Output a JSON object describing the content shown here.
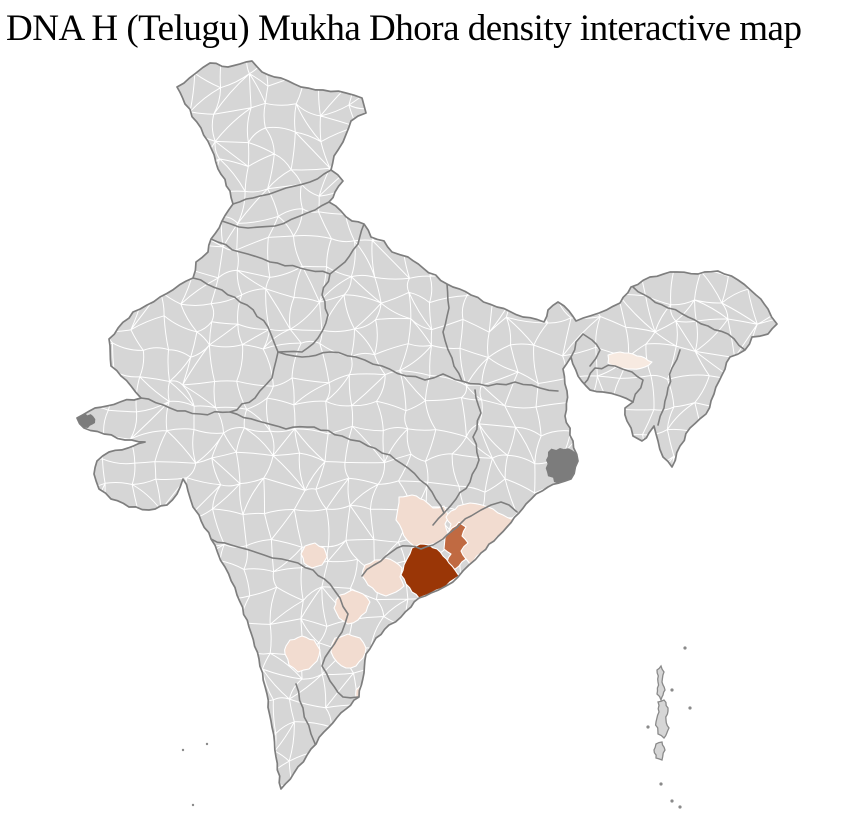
{
  "title": "DNA H (Telugu) Mukha Dhora density interactive map",
  "map": {
    "type": "choropleth-district-map-of-india",
    "background": "#ffffff",
    "district_fill": "#d6d6d6",
    "district_border": "#ffffff",
    "state_border": "#7e7e7e",
    "country_border": "#7e7e7e",
    "marsh_delta_fill": "#7c7c7c",
    "island_fill": "#d6d6d6",
    "island_border": "#8a8a8a",
    "density_levels": [
      {
        "level": "highest",
        "color": "#9a3606"
      },
      {
        "level": "high",
        "color": "#c06a42"
      },
      {
        "level": "low",
        "color": "#f2dcd0"
      },
      {
        "level": "trace",
        "color": "#f7eae1"
      }
    ]
  }
}
